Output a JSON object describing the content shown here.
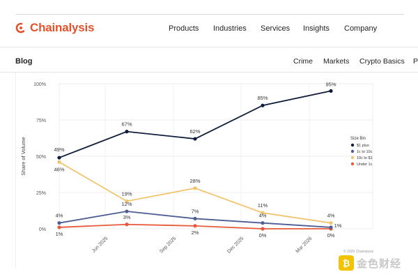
{
  "header": {
    "brand": "Chainalysis",
    "nav": [
      "Products",
      "Industries",
      "Services",
      "Insights",
      "Company"
    ]
  },
  "subheader": {
    "section": "Blog",
    "links": [
      "Crime",
      "Markets",
      "Crypto Basics",
      "P"
    ]
  },
  "colors": {
    "brand": "#e2532d",
    "s1": "#0e1d3c",
    "s2": "#4c5e93",
    "s3": "#f2c46e",
    "s4": "#e8593a"
  },
  "watermark": {
    "text": "金色财经"
  },
  "chart_data": {
    "type": "line",
    "ylabel": "Share of Volume",
    "yticks": [
      "0%",
      "25%",
      "50%",
      "75%",
      "100%"
    ],
    "ylim": [
      0,
      100
    ],
    "xticks": [
      "Jun 2025",
      "Sep 2025",
      "Dec 2025",
      "Mar 2026"
    ],
    "legend_title": "Size Bin",
    "legend_position": "right",
    "copyright": "© 2026 Chainalysis",
    "grid": true,
    "series": [
      {
        "name": "$1 plus",
        "color": "#0e1d3c",
        "values": [
          49,
          67,
          62,
          85,
          95
        ],
        "labels": [
          "49%",
          "67%",
          "62%",
          "85%",
          "95%"
        ]
      },
      {
        "name": "1c to 10c",
        "color": "#4c5e93",
        "values": [
          4,
          12,
          7,
          4,
          1
        ],
        "labels": [
          "4%",
          "12%",
          "7%",
          "4%",
          "1%"
        ]
      },
      {
        "name": "10c to $1",
        "color": "#f2c46e",
        "values": [
          46,
          19,
          28,
          11,
          4
        ],
        "labels": [
          "46%",
          "19%",
          "28%",
          "11%",
          "4%"
        ]
      },
      {
        "name": "Under 1c",
        "color": "#e8593a",
        "values": [
          1,
          3,
          2,
          0,
          0
        ],
        "labels": [
          "1%",
          "3%",
          "2%",
          "0%",
          "0%"
        ]
      }
    ]
  }
}
